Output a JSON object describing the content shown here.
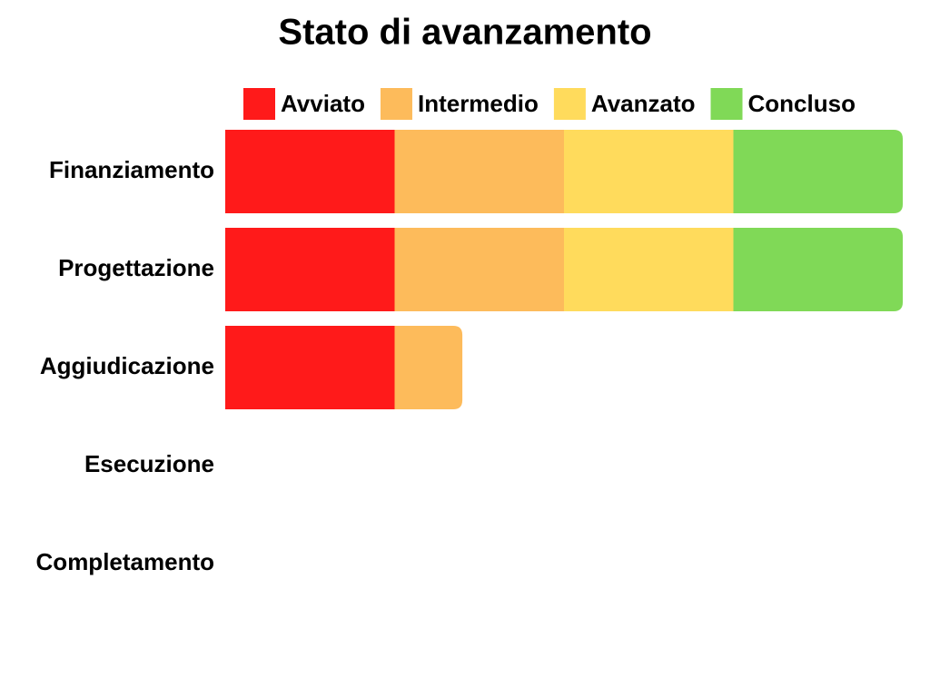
{
  "chart_data": {
    "type": "stacked-bar-horizontal",
    "title": "Stato di avanzamento",
    "categories": [
      "Finanziamento",
      "Progettazione",
      "Aggiudicazione",
      "Esecuzione",
      "Completamento"
    ],
    "series": [
      {
        "name": "Avviato",
        "color": "#ff1a1a",
        "values": [
          1,
          1,
          1,
          0,
          0
        ]
      },
      {
        "name": "Intermedio",
        "color": "#fdbb5b",
        "values": [
          1,
          1,
          0.4,
          0,
          0
        ]
      },
      {
        "name": "Avanzato",
        "color": "#ffdb5c",
        "values": [
          1,
          1,
          0,
          0,
          0
        ]
      },
      {
        "name": "Concluso",
        "color": "#80d957",
        "values": [
          1,
          1,
          0,
          0,
          0
        ]
      }
    ],
    "xlim": [
      0,
      4
    ]
  }
}
